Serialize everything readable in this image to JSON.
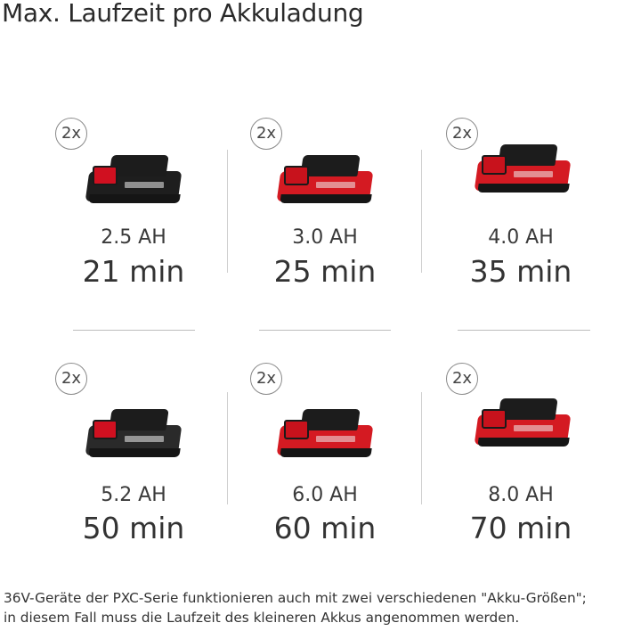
{
  "title": "Max. Laufzeit pro Akkuladung",
  "batteries": [
    {
      "count": "2x",
      "capacity": "2.5 AH",
      "runtime": "21 min",
      "body_color": "#1e1e1e",
      "accent_color": "#d01020"
    },
    {
      "count": "2x",
      "capacity": "3.0 AH",
      "runtime": "25 min",
      "body_color": "#d41a22",
      "accent_color": "#1e1e1e"
    },
    {
      "count": "2x",
      "capacity": "4.0 AH",
      "runtime": "35 min",
      "body_color": "#d41a22",
      "accent_color": "#1e1e1e"
    },
    {
      "count": "2x",
      "capacity": "5.2 AH",
      "runtime": "50 min",
      "body_color": "#2a2a2a",
      "accent_color": "#d01020"
    },
    {
      "count": "2x",
      "capacity": "6.0 AH",
      "runtime": "60 min",
      "body_color": "#d41a22",
      "accent_color": "#1e1e1e"
    },
    {
      "count": "2x",
      "capacity": "8.0 AH",
      "runtime": "70 min",
      "body_color": "#d41a22",
      "accent_color": "#1e1e1e"
    }
  ],
  "note": {
    "line1": "36V-Geräte der PXC-Serie funktionieren auch mit zwei verschiedenen \"Akku-Größen\";",
    "line2": "in diesem Fall muss die Laufzeit des kleineren Akkus angenommen werden."
  }
}
